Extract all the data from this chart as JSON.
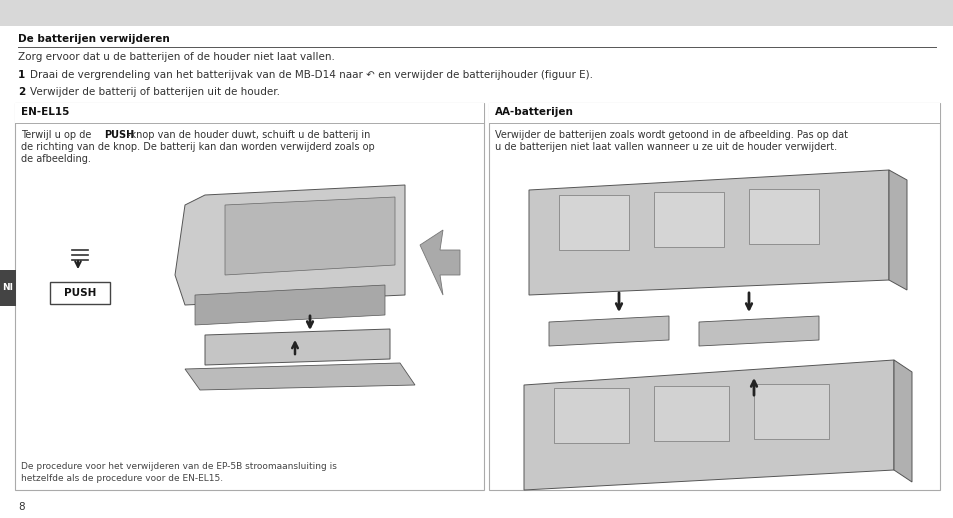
{
  "page_bg": "#ffffff",
  "top_banner_color": "#e0e0e0",
  "title": "De batterijen verwijderen",
  "subtitle": "Zorg ervoor dat u de batterijen of de houder niet laat vallen.",
  "step1_num": "1",
  "step1": "Draai de vergrendeling van het batterijvak van de MB-D14 naar ↶ en verwijder de batterijhouder (figuur E).",
  "step2_num": "2",
  "step2": "Verwijder de batterij of batterijen uit de houder.",
  "left_box_title": "EN-EL15",
  "left_body_line1": "Terwijl u op de ",
  "left_body_bold": "PUSH",
  "left_body_line1b": "-knop van de houder duwt, schuift u de batterij in",
  "left_body_line2": "de richting van de knop. De batterij kan dan worden verwijderd zoals op",
  "left_body_line3": "de afbeelding.",
  "left_box_footer1": "De procedure voor het verwijderen van de EP-5B stroomaansluiting is",
  "left_box_footer2": "hetzelfde als de procedure voor de EN-EL15.",
  "push_label": "PUSH",
  "right_box_title": "AA-batterijen",
  "right_body_line1": "Verwijder de batterijen zoals wordt getoond in de afbeelding. Pas op dat",
  "right_body_line2": "u de batterijen niet laat vallen wanneer u ze uit de houder verwijdert.",
  "page_number": "8",
  "lang_label": "NI",
  "fig_width": 9.54,
  "fig_height": 5.18,
  "dpi": 100
}
